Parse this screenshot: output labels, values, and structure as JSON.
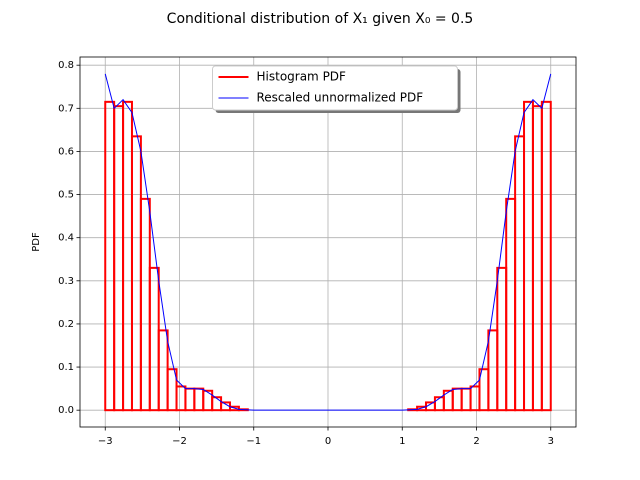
{
  "chart_data": {
    "type": "histogram",
    "title": "Conditional distribution of X₁ given X₀ = 0.5",
    "ylabel": "PDF",
    "bins": [
      -3,
      -2.88,
      -2.76,
      -2.64,
      -2.52,
      -2.4,
      -2.28,
      -2.16,
      -2.04,
      -1.92,
      -1.8,
      -1.68,
      -1.56,
      -1.44,
      -1.32,
      -1.2,
      -1.08,
      -0.96,
      -0.84,
      -0.72,
      -0.6,
      -0.48,
      -0.36,
      -0.24,
      -0.12,
      0,
      0.12,
      0.24,
      0.36,
      0.48,
      0.6,
      0.72,
      0.84,
      0.96,
      1.08,
      1.2,
      1.32,
      1.44,
      1.56,
      1.68,
      1.8,
      1.92,
      2.04,
      2.16,
      2.28,
      2.4,
      2.52,
      2.64,
      2.76,
      2.88,
      3
    ],
    "series": [
      {
        "name": "Histogram PDF",
        "color": "#ff0000",
        "type": "histogram",
        "values": [
          0.715,
          0.705,
          0.715,
          0.635,
          0.49,
          0.33,
          0.185,
          0.095,
          0.055,
          0.05,
          0.05,
          0.045,
          0.03,
          0.018,
          0.008,
          0.002,
          0,
          0,
          0,
          0,
          0,
          0,
          0,
          0,
          0,
          0,
          0,
          0,
          0,
          0,
          0,
          0,
          0,
          0,
          0.002,
          0.008,
          0.018,
          0.03,
          0.045,
          0.05,
          0.05,
          0.055,
          0.095,
          0.185,
          0.33,
          0.49,
          0.635,
          0.715,
          0.705,
          0.715
        ]
      },
      {
        "name": "Rescaled unnormalized PDF",
        "color": "#0000ff",
        "type": "line",
        "x": [
          -3,
          -2.88,
          -2.76,
          -2.64,
          -2.52,
          -2.4,
          -2.28,
          -2.16,
          -2.04,
          -1.92,
          -1.8,
          -1.68,
          -1.56,
          -1.44,
          -1.32,
          -1.2,
          -1,
          0,
          1,
          1.2,
          1.32,
          1.44,
          1.56,
          1.68,
          1.8,
          1.92,
          2.04,
          2.16,
          2.28,
          2.4,
          2.52,
          2.64,
          2.76,
          2.88,
          3
        ],
        "values": [
          0.78,
          0.7,
          0.72,
          0.69,
          0.6,
          0.46,
          0.3,
          0.16,
          0.07,
          0.05,
          0.05,
          0.048,
          0.035,
          0.02,
          0.008,
          0.002,
          0,
          0,
          0,
          0.002,
          0.008,
          0.02,
          0.035,
          0.048,
          0.05,
          0.05,
          0.07,
          0.16,
          0.3,
          0.46,
          0.6,
          0.69,
          0.72,
          0.7,
          0.78
        ]
      }
    ],
    "xlim": [
      -3.34,
      3.34
    ],
    "ylim": [
      -0.039,
      0.819
    ],
    "xticks": [
      {
        "value": -3,
        "label": "−3"
      },
      {
        "value": -2,
        "label": "−2"
      },
      {
        "value": -1,
        "label": "−1"
      },
      0,
      1,
      2,
      3
    ],
    "yticks": [
      {
        "value": 0,
        "label": "0.0"
      },
      0.1,
      0.2,
      0.3,
      0.4,
      0.5,
      0.6,
      0.7,
      0.8
    ],
    "grid": true,
    "legend": "upper center"
  }
}
